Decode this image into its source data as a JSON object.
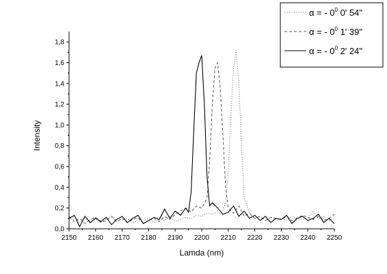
{
  "chart_data": {
    "type": "line",
    "xlabel": "Lamda (nm)",
    "ylabel": "Intensity",
    "xlim": [
      2150,
      2250
    ],
    "ylim": [
      0.0,
      1.9
    ],
    "xticks": [
      "2150",
      "2160",
      "2170",
      "2180",
      "2190",
      "2200",
      "2210",
      "2220",
      "2230",
      "2240",
      "2250"
    ],
    "yticks": [
      "0,0",
      "0,2",
      "0,4",
      "0,6",
      "0,8",
      "1,0",
      "1,2",
      "1,4",
      "1,6",
      "1,8"
    ],
    "grid": false,
    "legend_position": "top-right",
    "legend": [
      {
        "prefix": "α = - 0",
        "sup": "0",
        "suffix": " 0' 54\"",
        "style": "dotted"
      },
      {
        "prefix": "α = - 0",
        "sup": "0",
        "suffix": " 1' 39\"",
        "style": "dashed"
      },
      {
        "prefix": "α = - 0",
        "sup": "0",
        "suffix": " 2' 24\"",
        "style": "solid"
      }
    ],
    "series": [
      {
        "style": "dotted",
        "color": "#777777",
        "x": [
          2150,
          2152,
          2154,
          2156,
          2158,
          2160,
          2162,
          2164,
          2166,
          2168,
          2170,
          2172,
          2174,
          2176,
          2178,
          2180,
          2182,
          2184,
          2186,
          2188,
          2190,
          2192,
          2194,
          2196,
          2198,
          2200,
          2202,
          2204,
          2206,
          2207,
          2208,
          2209,
          2210,
          2211,
          2212,
          2213,
          2214,
          2215,
          2216,
          2218,
          2220,
          2222,
          2224,
          2226,
          2228,
          2230,
          2232,
          2234,
          2236,
          2238,
          2240,
          2242,
          2244,
          2246,
          2248,
          2250
        ],
        "y": [
          0.08,
          0.12,
          0.06,
          0.1,
          0.05,
          0.11,
          0.07,
          0.09,
          0.12,
          0.06,
          0.08,
          0.1,
          0.05,
          0.09,
          0.07,
          0.11,
          0.06,
          0.1,
          0.08,
          0.12,
          0.07,
          0.09,
          0.11,
          0.1,
          0.13,
          0.12,
          0.15,
          0.14,
          0.16,
          0.15,
          0.18,
          0.25,
          0.55,
          1.1,
          1.55,
          1.72,
          1.4,
          0.8,
          0.3,
          0.15,
          0.1,
          0.12,
          0.08,
          0.11,
          0.09,
          0.1,
          0.08,
          0.12,
          0.1,
          0.09,
          0.11,
          0.17,
          0.1,
          0.12,
          0.08,
          0.1
        ]
      },
      {
        "style": "dashed",
        "color": "#555555",
        "x": [
          2150,
          2152,
          2154,
          2156,
          2158,
          2160,
          2162,
          2164,
          2166,
          2168,
          2170,
          2172,
          2174,
          2176,
          2178,
          2180,
          2182,
          2184,
          2186,
          2188,
          2190,
          2192,
          2194,
          2196,
          2198,
          2200,
          2201,
          2202,
          2203,
          2204,
          2205,
          2206,
          2207,
          2208,
          2209,
          2210,
          2212,
          2214,
          2216,
          2218,
          2220,
          2222,
          2224,
          2226,
          2228,
          2230,
          2232,
          2234,
          2236,
          2238,
          2240,
          2242,
          2244,
          2246,
          2248,
          2250
        ],
        "y": [
          0.12,
          0.07,
          0.1,
          0.05,
          0.09,
          0.11,
          0.06,
          0.08,
          0.12,
          0.07,
          0.1,
          0.06,
          0.09,
          0.11,
          0.05,
          0.08,
          0.1,
          0.07,
          0.12,
          0.09,
          0.14,
          0.17,
          0.2,
          0.16,
          0.22,
          0.2,
          0.24,
          0.3,
          0.65,
          1.2,
          1.55,
          1.6,
          1.35,
          0.9,
          0.4,
          0.2,
          0.15,
          0.22,
          0.12,
          0.15,
          0.1,
          0.12,
          0.08,
          0.11,
          0.1,
          0.09,
          0.12,
          0.08,
          0.1,
          0.13,
          0.11,
          0.09,
          0.12,
          0.08,
          0.1,
          0.14
        ]
      },
      {
        "style": "solid",
        "color": "#000000",
        "x": [
          2150,
          2152,
          2154,
          2156,
          2158,
          2160,
          2162,
          2164,
          2166,
          2168,
          2170,
          2172,
          2174,
          2176,
          2178,
          2180,
          2182,
          2184,
          2186,
          2188,
          2190,
          2192,
          2194,
          2195,
          2196,
          2197,
          2198,
          2199,
          2200,
          2201,
          2202,
          2203,
          2204,
          2206,
          2208,
          2210,
          2212,
          2214,
          2216,
          2218,
          2220,
          2222,
          2224,
          2226,
          2228,
          2230,
          2232,
          2234,
          2236,
          2238,
          2240,
          2242,
          2244,
          2246,
          2248,
          2250
        ],
        "y": [
          0.1,
          0.13,
          0.02,
          0.12,
          0.06,
          0.1,
          0.07,
          0.11,
          0.04,
          0.09,
          0.12,
          0.06,
          0.1,
          0.13,
          0.05,
          0.08,
          0.11,
          0.09,
          0.19,
          0.1,
          0.17,
          0.13,
          0.2,
          0.16,
          0.35,
          0.95,
          1.5,
          1.6,
          1.67,
          1.2,
          0.5,
          0.22,
          0.25,
          0.2,
          0.14,
          0.16,
          0.22,
          0.12,
          0.17,
          0.1,
          0.13,
          0.08,
          0.12,
          0.06,
          0.1,
          0.09,
          0.13,
          0.05,
          0.1,
          0.12,
          0.08,
          0.1,
          0.14,
          0.06,
          0.1,
          0.05
        ]
      }
    ]
  }
}
